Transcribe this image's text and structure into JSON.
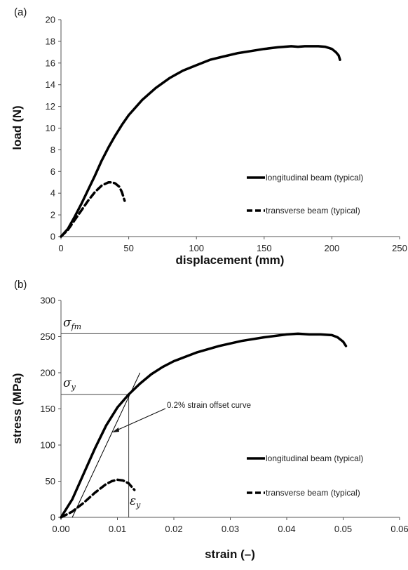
{
  "chart_data": [
    {
      "panel": "(a)",
      "type": "line",
      "xlabel": "displacement (mm)",
      "ylabel": "load (N)",
      "xlim": [
        0,
        250
      ],
      "ylim": [
        0,
        20
      ],
      "xticks": [
        "0",
        "50",
        "100",
        "150",
        "200",
        "250"
      ],
      "yticks": [
        "0",
        "2",
        "4",
        "6",
        "8",
        "10",
        "12",
        "14",
        "16",
        "18",
        "20"
      ],
      "grid": false,
      "legend_position": "right",
      "series": [
        {
          "name": "longitudinal beam (typical)",
          "style": "solid",
          "x": [
            0,
            5,
            10,
            15,
            20,
            25,
            30,
            35,
            40,
            45,
            50,
            60,
            70,
            80,
            90,
            100,
            110,
            120,
            130,
            140,
            150,
            160,
            170,
            175,
            180,
            190,
            195,
            200,
            203,
            205,
            206
          ],
          "y": [
            0,
            0.7,
            1.8,
            3.0,
            4.3,
            5.6,
            7.0,
            8.2,
            9.3,
            10.3,
            11.2,
            12.6,
            13.7,
            14.6,
            15.3,
            15.8,
            16.3,
            16.6,
            16.9,
            17.1,
            17.3,
            17.45,
            17.55,
            17.5,
            17.55,
            17.55,
            17.5,
            17.3,
            17.0,
            16.7,
            16.3
          ]
        },
        {
          "name": "transverse beam (typical)",
          "style": "dashed",
          "x": [
            0,
            5,
            10,
            15,
            20,
            25,
            30,
            35,
            38,
            40,
            43,
            45,
            47
          ],
          "y": [
            0,
            0.6,
            1.5,
            2.4,
            3.3,
            4.1,
            4.7,
            5.0,
            5.0,
            4.9,
            4.6,
            4.1,
            3.3
          ]
        }
      ]
    },
    {
      "panel": "(b)",
      "type": "line",
      "xlabel": "strain (–)",
      "ylabel": "stress (MPa)",
      "xlim": [
        0,
        0.06
      ],
      "ylim": [
        0,
        300
      ],
      "xticks": [
        "0.00",
        "0.01",
        "0.02",
        "0.03",
        "0.04",
        "0.05",
        "0.06"
      ],
      "yticks": [
        "0",
        "50",
        "100",
        "150",
        "200",
        "250",
        "300"
      ],
      "grid": false,
      "legend_position": "right",
      "series": [
        {
          "name": "longitudinal beam (typical)",
          "style": "solid",
          "x": [
            0,
            0.002,
            0.004,
            0.006,
            0.008,
            0.01,
            0.012,
            0.014,
            0.016,
            0.018,
            0.02,
            0.024,
            0.028,
            0.032,
            0.036,
            0.04,
            0.042,
            0.044,
            0.046,
            0.048,
            0.049,
            0.05,
            0.0505
          ],
          "y": [
            0,
            25,
            60,
            95,
            127,
            152,
            170,
            185,
            198,
            208,
            216,
            228,
            237,
            244,
            249,
            253,
            254,
            253,
            253,
            252,
            249,
            243,
            237
          ]
        },
        {
          "name": "transverse beam (typical)",
          "style": "dashed",
          "x": [
            0,
            0.002,
            0.004,
            0.006,
            0.008,
            0.009,
            0.01,
            0.011,
            0.012,
            0.013
          ],
          "y": [
            0,
            8,
            20,
            34,
            46,
            50,
            52,
            51,
            47,
            38
          ]
        },
        {
          "name": "0.2% strain offset curve",
          "style": "thin",
          "x": [
            0.002,
            0.014
          ],
          "y": [
            0,
            200
          ]
        }
      ],
      "annotations": {
        "offset_label": "0.2% strain offset curve",
        "sigma_fm": {
          "symbol": "σ",
          "subscript": "fm",
          "value": 254
        },
        "sigma_y": {
          "symbol": "σ",
          "subscript": "y",
          "value": 170
        },
        "epsilon_y": {
          "symbol": "ε",
          "subscript": "y",
          "value": 0.012
        }
      }
    }
  ]
}
